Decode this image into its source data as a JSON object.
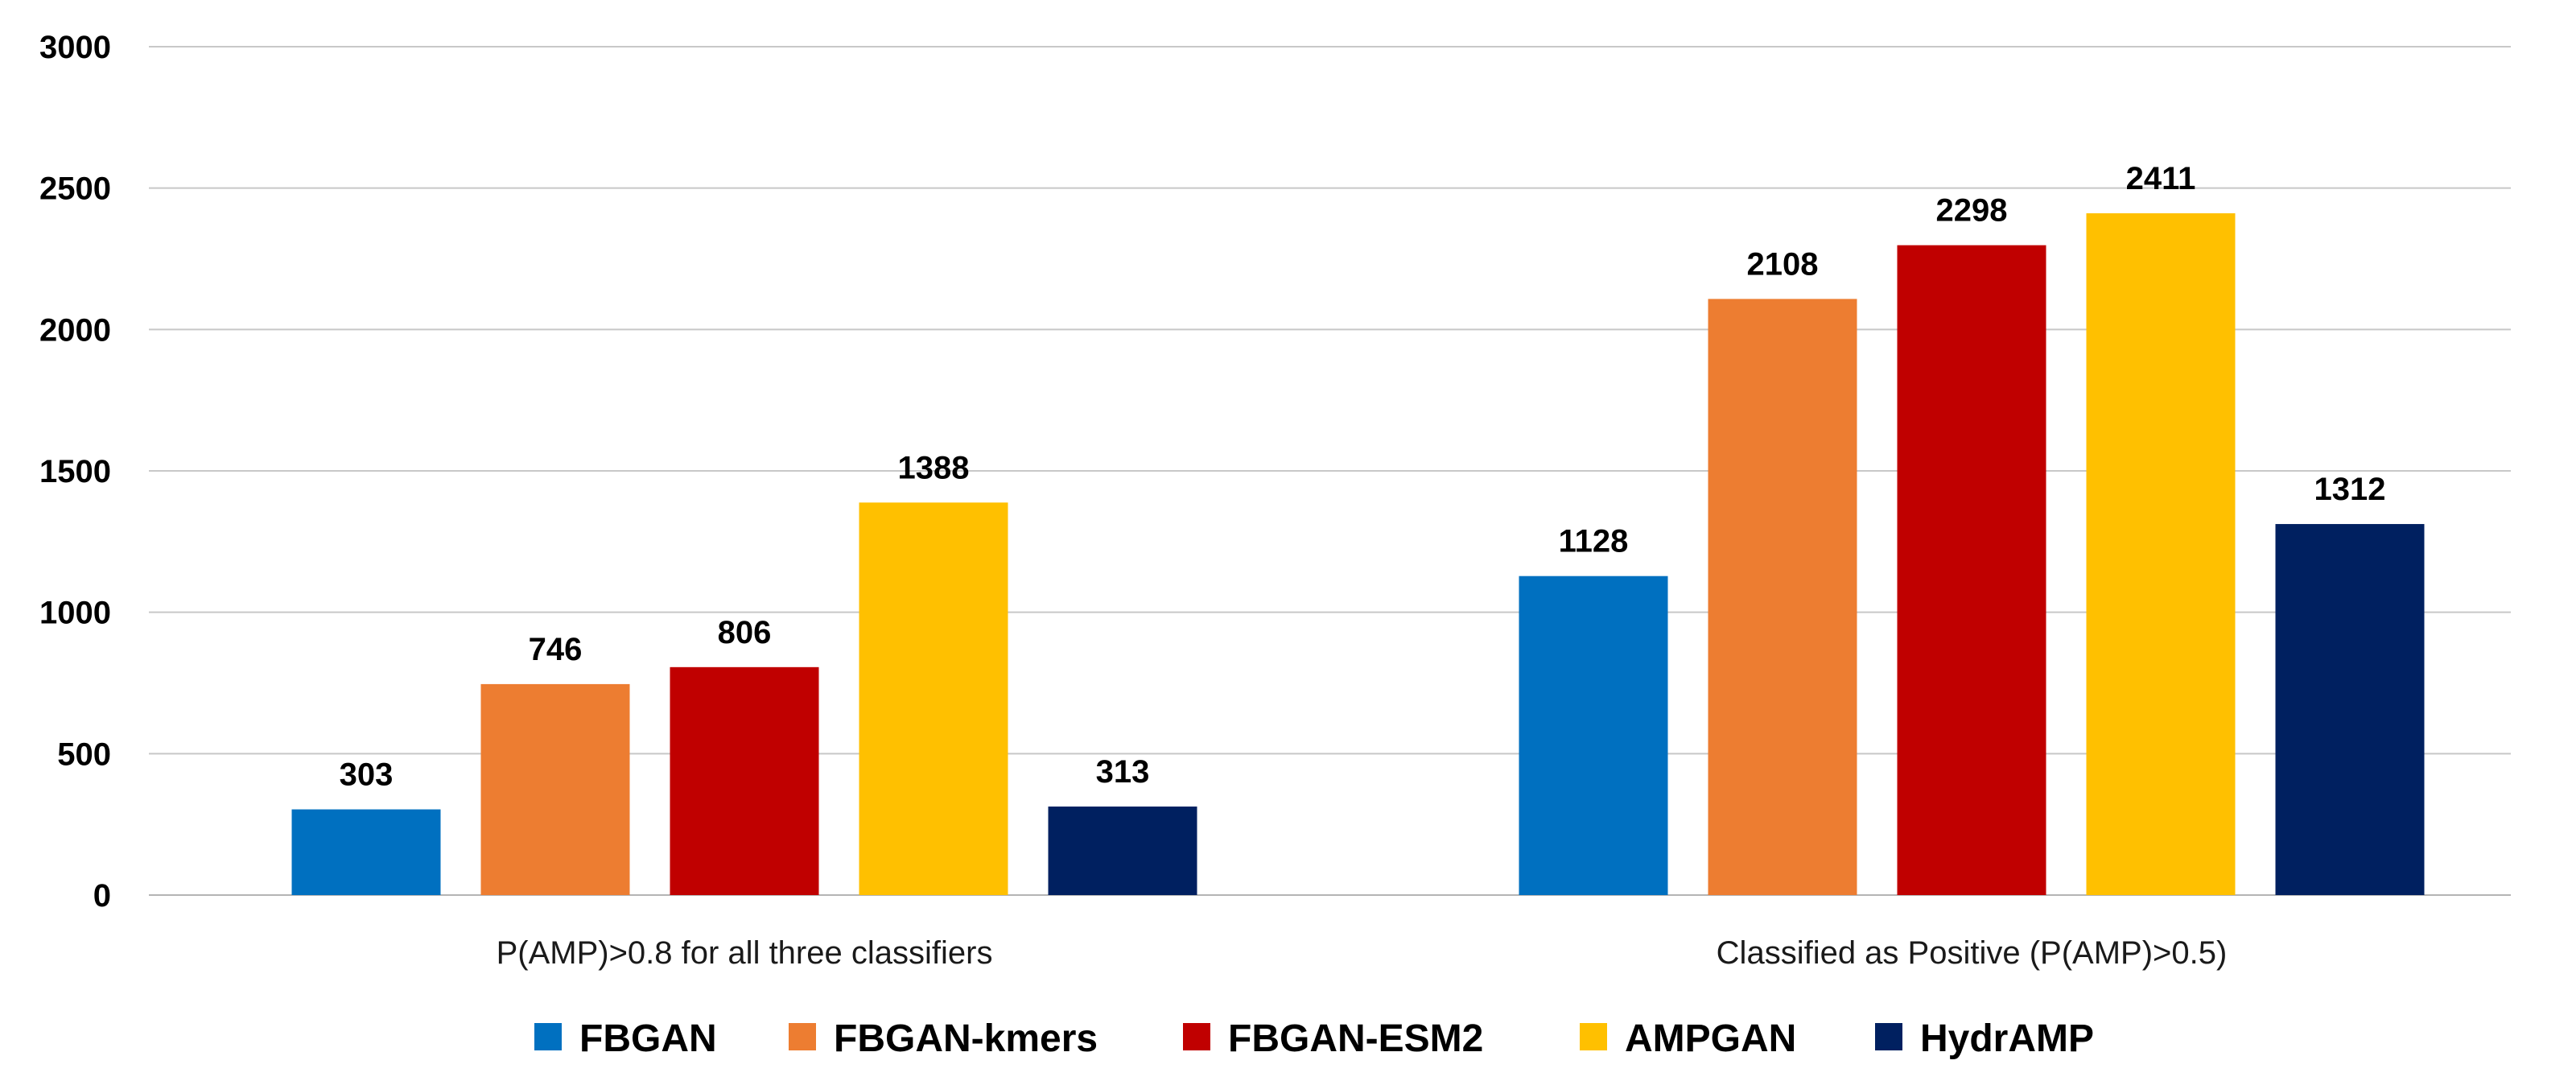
{
  "chart_data": {
    "type": "bar",
    "title": "",
    "xlabel": "",
    "ylabel": "",
    "categories": [
      "P(AMP)>0.8 for all three classifiers",
      "Classified as Positive (P(AMP)>0.5)"
    ],
    "series": [
      {
        "name": "FBGAN",
        "color": "#0070C0",
        "values": [
          303,
          1128
        ]
      },
      {
        "name": "FBGAN-kmers",
        "color": "#ED7D31",
        "values": [
          746,
          2108
        ]
      },
      {
        "name": "FBGAN-ESM2",
        "color": "#C00000",
        "values": [
          806,
          2298
        ]
      },
      {
        "name": "AMPGAN",
        "color": "#FFC000",
        "values": [
          1388,
          2411
        ]
      },
      {
        "name": "HydrAMP",
        "color": "#002060",
        "values": [
          313,
          1312
        ]
      }
    ],
    "ylim": [
      0,
      3000
    ],
    "yticks": [
      0,
      500,
      1000,
      1500,
      2000,
      2500,
      3000
    ],
    "grid": true,
    "legend": "bottom"
  }
}
